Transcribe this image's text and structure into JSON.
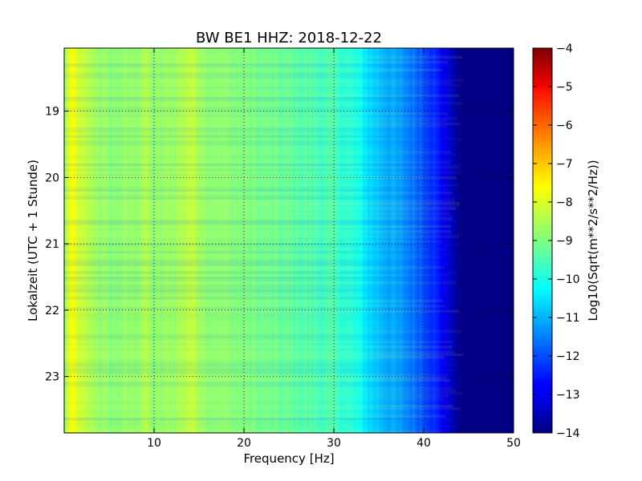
{
  "chart_data": {
    "type": "heatmap",
    "title": "BW BE1 HHZ: 2018-12-22",
    "xlabel": "Frequency [Hz]",
    "ylabel": "Lokalzeit (UTC + 1 Stunde)",
    "colorbar_label": "Log10(Sqrt(m**2/s**2/Hz))",
    "xlim": [
      0,
      50
    ],
    "ylim_hours": [
      18.05,
      23.85
    ],
    "y_inverted": true,
    "x_ticks": [
      10,
      20,
      30,
      40,
      50
    ],
    "x_tick_labels": [
      "10",
      "20",
      "30",
      "40",
      "50"
    ],
    "y_ticks": [
      19,
      20,
      21,
      22,
      23
    ],
    "y_tick_labels": [
      "19",
      "20",
      "21",
      "22",
      "23"
    ],
    "grid": true,
    "colormap": "jet",
    "clim": [
      -14,
      -4
    ],
    "colorbar_ticks": [
      -4,
      -5,
      -6,
      -7,
      -8,
      -9,
      -10,
      -11,
      -12,
      -13,
      -14
    ],
    "colorbar_tick_labels": [
      "−4",
      "−5",
      "−6",
      "−7",
      "−8",
      "−9",
      "−10",
      "−11",
      "−12",
      "−13",
      "−14"
    ],
    "spectrum_profile": {
      "frequency_hz": [
        0,
        0.5,
        1,
        2,
        5,
        8,
        9,
        10,
        13,
        14,
        16,
        20,
        25,
        28,
        30,
        32,
        33,
        34,
        36,
        38,
        40,
        41,
        42,
        43,
        44,
        45,
        50
      ],
      "level_log10": [
        -9.0,
        -8.0,
        -7.9,
        -8.4,
        -8.9,
        -8.8,
        -8.5,
        -8.9,
        -8.6,
        -8.3,
        -8.8,
        -9.0,
        -9.3,
        -9.5,
        -9.6,
        -9.9,
        -10.2,
        -10.6,
        -11.0,
        -11.4,
        -11.9,
        -12.3,
        -12.8,
        -13.3,
        -14.0,
        -14.0,
        -14.0
      ]
    }
  }
}
